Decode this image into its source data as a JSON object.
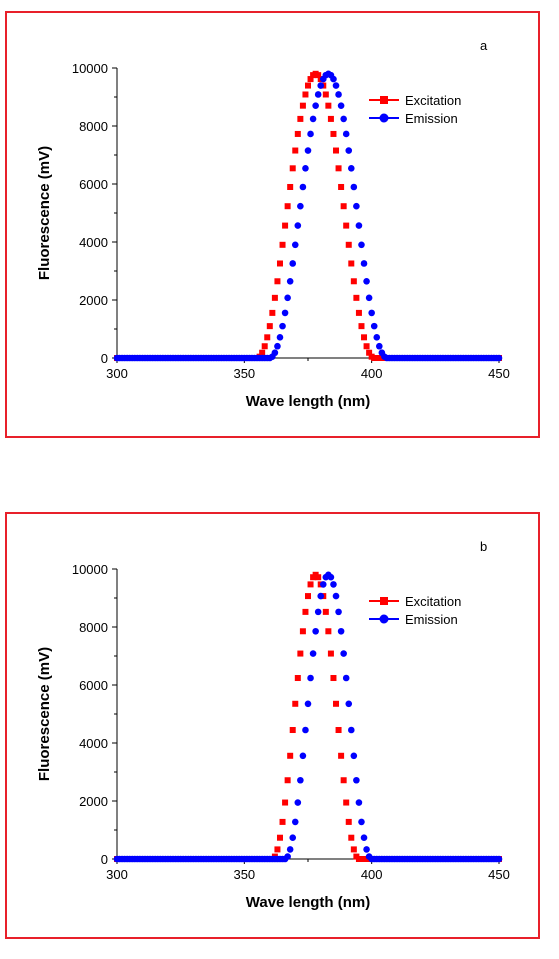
{
  "chart_data": [
    {
      "type": "scatter",
      "panel_label": "a",
      "xlabel": "Wave length (nm)",
      "ylabel": "Fluorescence (mV)",
      "xlim": [
        300,
        450
      ],
      "ylim": [
        0,
        10000
      ],
      "xticks": [
        300,
        350,
        400,
        450
      ],
      "yticks": [
        0,
        2000,
        4000,
        6000,
        8000,
        10000
      ],
      "legend_position": "top-right",
      "series": [
        {
          "name": "Excitation",
          "color": "#ff0000",
          "marker": "square",
          "peak_x": 378,
          "peak_y": 9800,
          "half_width": 23,
          "x_start": 300,
          "x_end": 450,
          "step": 1
        },
        {
          "name": "Emission",
          "color": "#0000ff",
          "marker": "circle",
          "peak_x": 383,
          "peak_y": 9800,
          "half_width": 23,
          "x_start": 300,
          "x_end": 450,
          "step": 1
        }
      ]
    },
    {
      "type": "scatter",
      "panel_label": "b",
      "xlabel": "Wave length (nm)",
      "ylabel": "Fluorescence (mV)",
      "xlim": [
        300,
        450
      ],
      "ylim": [
        0,
        10000
      ],
      "xticks": [
        300,
        350,
        400,
        450
      ],
      "yticks": [
        0,
        2000,
        4000,
        6000,
        8000,
        10000
      ],
      "legend_position": "top-right",
      "series": [
        {
          "name": "Excitation",
          "color": "#ff0000",
          "marker": "square",
          "peak_x": 378,
          "peak_y": 9800,
          "half_width": 17,
          "x_start": 300,
          "x_end": 450,
          "step": 1
        },
        {
          "name": "Emission",
          "color": "#0000ff",
          "marker": "circle",
          "peak_x": 383,
          "peak_y": 9800,
          "half_width": 17,
          "x_start": 300,
          "x_end": 450,
          "step": 1
        }
      ]
    }
  ]
}
